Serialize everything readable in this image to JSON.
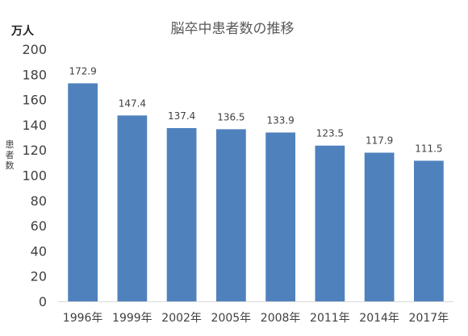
{
  "chart_data": {
    "type": "bar",
    "title": "脳卒中患者数の推移",
    "unit_label": "万人",
    "ylabel": "患者数",
    "categories": [
      "1996年",
      "1999年",
      "2002年",
      "2005年",
      "2008年",
      "2011年",
      "2014年",
      "2017年"
    ],
    "values": [
      172.9,
      147.4,
      137.4,
      136.5,
      133.9,
      123.5,
      117.9,
      111.5
    ],
    "data_labels": [
      "172.9",
      "147.4",
      "137.4",
      "136.5",
      "133.9",
      "123.5",
      "117.9",
      "111.5"
    ],
    "yticks": [
      "0",
      "20",
      "40",
      "60",
      "80",
      "100",
      "120",
      "140",
      "160",
      "180",
      "200"
    ],
    "ylim": [
      0,
      200
    ],
    "grid": false,
    "legend": "none",
    "colors": {
      "bar": "#4f81bd",
      "text": "#404040",
      "title": "#595959",
      "axis": "#d9d9d9"
    }
  }
}
